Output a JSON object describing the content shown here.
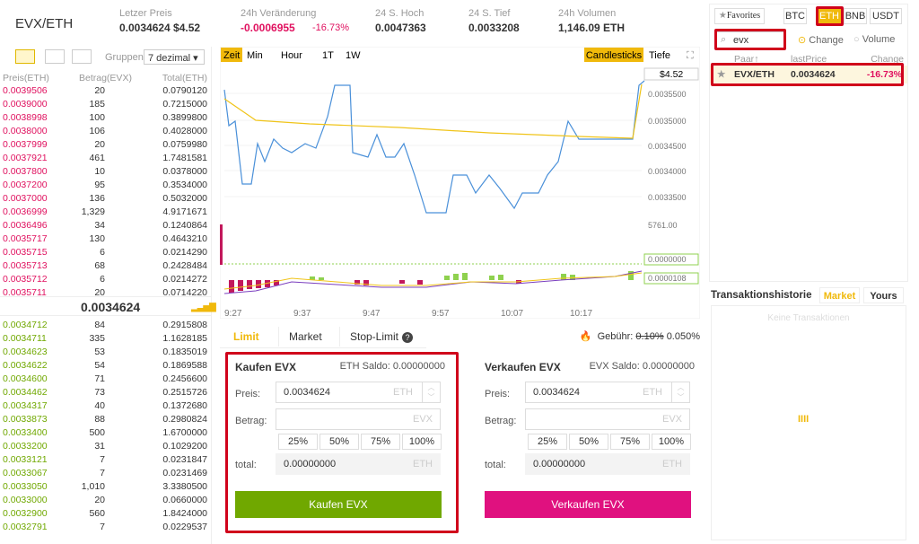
{
  "header": {
    "pair": "EVX/ETH",
    "stats": [
      {
        "label": "Letzer Preis",
        "value": "0.0034624 $4.52"
      },
      {
        "label": "24h Veränderung",
        "value": "-0.0006955",
        "change": "-16.73%"
      },
      {
        "label": "24 S. Hoch",
        "value": "0.0047363"
      },
      {
        "label": "24 S. Tief",
        "value": "0.0033208"
      },
      {
        "label": "24h Volumen",
        "value": "1,146.09 ETH"
      }
    ]
  },
  "orderbook": {
    "group_label": "Gruppen",
    "decimals": "7 dezimal",
    "columns": [
      "Preis(ETH)",
      "Betrag(EVX)",
      "Total(ETH)"
    ],
    "asks": [
      [
        "0.0039506",
        "20",
        "0.0790120"
      ],
      [
        "0.0039000",
        "185",
        "0.7215000"
      ],
      [
        "0.0038998",
        "100",
        "0.3899800"
      ],
      [
        "0.0038000",
        "106",
        "0.4028000"
      ],
      [
        "0.0037999",
        "20",
        "0.0759980"
      ],
      [
        "0.0037921",
        "461",
        "1.7481581"
      ],
      [
        "0.0037800",
        "10",
        "0.0378000"
      ],
      [
        "0.0037200",
        "95",
        "0.3534000"
      ],
      [
        "0.0037000",
        "136",
        "0.5032000"
      ],
      [
        "0.0036999",
        "1,329",
        "4.9171671"
      ],
      [
        "0.0036496",
        "34",
        "0.1240864"
      ],
      [
        "0.0035717",
        "130",
        "0.4643210"
      ],
      [
        "0.0035715",
        "6",
        "0.0214290"
      ],
      [
        "0.0035713",
        "68",
        "0.2428484"
      ],
      [
        "0.0035712",
        "6",
        "0.0214272"
      ],
      [
        "0.0035711",
        "20",
        "0.0714220"
      ]
    ],
    "last_price": "0.0034624",
    "bids": [
      [
        "0.0034712",
        "84",
        "0.2915808"
      ],
      [
        "0.0034711",
        "335",
        "1.1628185"
      ],
      [
        "0.0034623",
        "53",
        "0.1835019"
      ],
      [
        "0.0034622",
        "54",
        "0.1869588"
      ],
      [
        "0.0034600",
        "71",
        "0.2456600"
      ],
      [
        "0.0034462",
        "73",
        "0.2515726"
      ],
      [
        "0.0034317",
        "40",
        "0.1372680"
      ],
      [
        "0.0033873",
        "88",
        "0.2980824"
      ],
      [
        "0.0033400",
        "500",
        "1.6700000"
      ],
      [
        "0.0033200",
        "31",
        "0.1029200"
      ],
      [
        "0.0033121",
        "7",
        "0.0231847"
      ],
      [
        "0.0033067",
        "7",
        "0.0231469"
      ],
      [
        "0.0033050",
        "1,010",
        "3.3380500"
      ],
      [
        "0.0033000",
        "20",
        "0.0660000"
      ],
      [
        "0.0032900",
        "560",
        "1.8424000"
      ],
      [
        "0.0032791",
        "7",
        "0.0229537"
      ]
    ]
  },
  "chart": {
    "tabs": [
      "Zeit",
      "Min",
      "Hour",
      "1T",
      "1W"
    ],
    "views": [
      "Candlesticks",
      "Tiefe"
    ],
    "price_usd": "$4.52",
    "price_axis": [
      "0.0035500",
      "0.0035000",
      "0.0034500",
      "0.0034000",
      "0.0033500"
    ],
    "volume_label": "5761.00",
    "macd_labels": [
      "0.0000000",
      "0.0000108"
    ],
    "time_axis": [
      "9:27",
      "9:37",
      "9:47",
      "9:57",
      "10:07",
      "10:17"
    ]
  },
  "form": {
    "tabs": [
      "Limit",
      "Market",
      "Stop-Limit"
    ],
    "fee_label": "Gebühr:",
    "fee_old": "0.10%",
    "fee_new": "0.050%",
    "buy": {
      "title": "Kaufen EVX",
      "balance": "ETH Saldo: 0.00000000",
      "price_label": "Preis:",
      "price": "0.0034624",
      "price_unit": "ETH",
      "amount_label": "Betrag:",
      "amount_unit": "EVX",
      "percents": [
        "25%",
        "50%",
        "75%",
        "100%"
      ],
      "total_label": "total:",
      "total": "0.00000000",
      "total_unit": "ETH",
      "button": "Kaufen EVX"
    },
    "sell": {
      "title": "Verkaufen EVX",
      "balance": "EVX Saldo: 0.00000000",
      "price_label": "Preis:",
      "price": "0.0034624",
      "price_unit": "ETH",
      "amount_label": "Betrag:",
      "amount_unit": "EVX",
      "percents": [
        "25%",
        "50%",
        "75%",
        "100%"
      ],
      "total_label": "total:",
      "total": "0.00000000",
      "total_unit": "ETH",
      "button": "Verkaufen EVX"
    }
  },
  "markets": {
    "tabs": [
      "Favorites",
      "BTC",
      "ETH",
      "BNB",
      "USDT"
    ],
    "search": "evx",
    "sort_options": [
      "Change",
      "Volume"
    ],
    "columns": [
      "Paar",
      "lastPrice",
      "Change"
    ],
    "rows": [
      [
        "EVX/ETH",
        "0.0034624",
        "-16.73%"
      ]
    ]
  },
  "history": {
    "title": "Transaktionshistorie",
    "tabs": [
      "Market",
      "Yours"
    ],
    "empty": "Keine Transaktionen"
  }
}
